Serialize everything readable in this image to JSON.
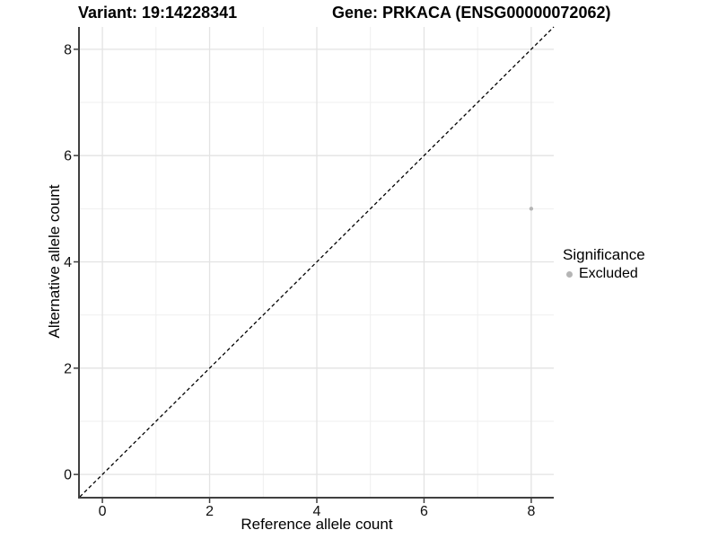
{
  "header": {
    "variant_title": "Variant: 19:14228341",
    "gene_title": "Gene: PRKACA (ENSG00000072062)"
  },
  "axes": {
    "x_label": "Reference allele count",
    "y_label": "Alternative allele count"
  },
  "legend": {
    "title": "Significance",
    "items": [
      {
        "label": "Excluded",
        "color": "#b5b5b5"
      }
    ]
  },
  "colors": {
    "background": "#ffffff",
    "axis_line": "#404040",
    "tick_mark": "#404040",
    "grid_major": "#e3e3e3",
    "grid_minor": "#efefef",
    "identity_line": "#000000",
    "tick_text": "#111111",
    "point": "#b5b5b5"
  },
  "chart_data": {
    "type": "scatter",
    "title_left": "Variant: 19:14228341",
    "title_right": "Gene: PRKACA (ENSG00000072062)",
    "xlabel": "Reference allele count",
    "ylabel": "Alternative allele count",
    "xlim": [
      -0.42,
      8.42
    ],
    "ylim": [
      -0.42,
      8.42
    ],
    "x_ticks": [
      0,
      2,
      4,
      6,
      8
    ],
    "y_ticks": [
      0,
      2,
      4,
      6,
      8
    ],
    "x_minor_gridlines": [
      1,
      3,
      5,
      7
    ],
    "y_minor_gridlines": [
      1,
      3,
      5,
      7
    ],
    "grid": true,
    "legend_position": "right",
    "identity_line": {
      "slope": 1,
      "intercept": 0,
      "linetype": "dashed",
      "color": "#000000"
    },
    "series": [
      {
        "name": "Excluded",
        "color": "#b5b5b5",
        "points": [
          {
            "x": 8,
            "y": 5
          }
        ]
      }
    ]
  }
}
